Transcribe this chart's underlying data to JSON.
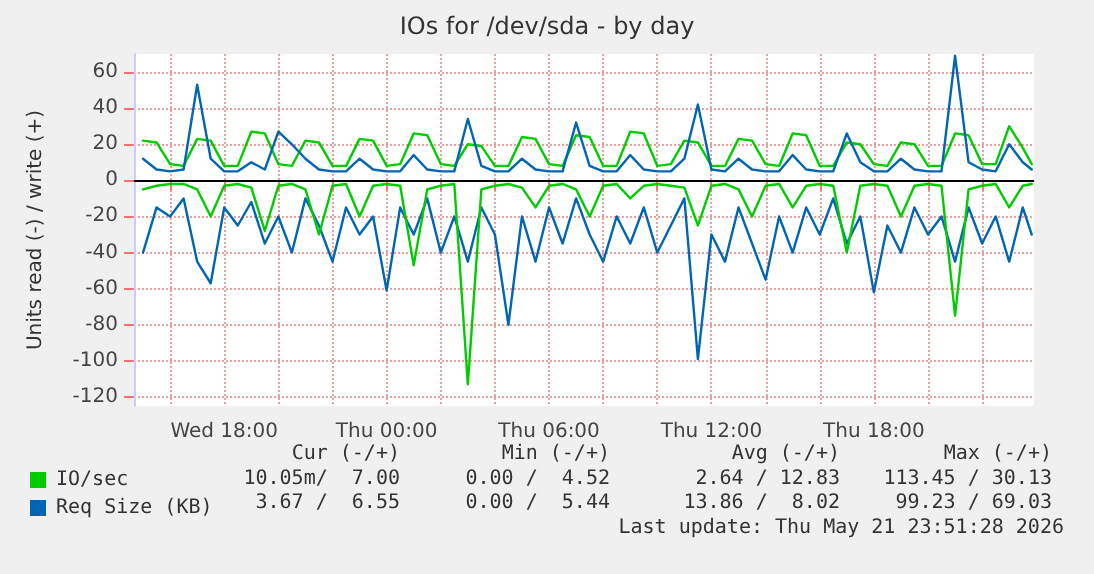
{
  "chart_data": {
    "type": "line",
    "title": "IOs for /dev/sda - by day",
    "ylabel": "Units read (-) / write (+)",
    "x": [
      "2026-05-20T15:00",
      "2026-05-20T15:30",
      "2026-05-20T16:00",
      "2026-05-20T16:30",
      "2026-05-20T17:00",
      "2026-05-20T17:30",
      "2026-05-20T18:00",
      "2026-05-20T18:30",
      "2026-05-20T19:00",
      "2026-05-20T19:30",
      "2026-05-20T20:00",
      "2026-05-20T20:30",
      "2026-05-20T21:00",
      "2026-05-20T21:30",
      "2026-05-20T22:00",
      "2026-05-20T22:30",
      "2026-05-20T23:00",
      "2026-05-20T23:30",
      "2026-05-21T00:00",
      "2026-05-21T00:30",
      "2026-05-21T01:00",
      "2026-05-21T01:30",
      "2026-05-21T02:00",
      "2026-05-21T02:30",
      "2026-05-21T03:00",
      "2026-05-21T03:30",
      "2026-05-21T04:00",
      "2026-05-21T04:30",
      "2026-05-21T05:00",
      "2026-05-21T05:30",
      "2026-05-21T06:00",
      "2026-05-21T06:30",
      "2026-05-21T07:00",
      "2026-05-21T07:30",
      "2026-05-21T08:00",
      "2026-05-21T08:30",
      "2026-05-21T09:00",
      "2026-05-21T09:30",
      "2026-05-21T10:00",
      "2026-05-21T10:30",
      "2026-05-21T11:00",
      "2026-05-21T11:30",
      "2026-05-21T12:00",
      "2026-05-21T12:30",
      "2026-05-21T13:00",
      "2026-05-21T13:30",
      "2026-05-21T14:00",
      "2026-05-21T14:30",
      "2026-05-21T15:00",
      "2026-05-21T15:30",
      "2026-05-21T16:00",
      "2026-05-21T16:30",
      "2026-05-21T17:00",
      "2026-05-21T17:30",
      "2026-05-21T18:00",
      "2026-05-21T18:30",
      "2026-05-21T19:00",
      "2026-05-21T19:30",
      "2026-05-21T20:00",
      "2026-05-21T20:30",
      "2026-05-21T21:00",
      "2026-05-21T21:30",
      "2026-05-21T22:00",
      "2026-05-21T22:30",
      "2026-05-21T23:00",
      "2026-05-21T23:30",
      "2026-05-21T23:50"
    ],
    "series": [
      {
        "name": "IO/sec",
        "color": "#00cc00",
        "values": [
          22,
          21,
          9,
          8,
          23,
          22,
          8,
          8,
          27,
          26,
          9,
          8,
          22,
          21,
          8,
          8,
          23,
          22,
          8,
          9,
          26,
          25,
          9,
          8,
          20,
          19,
          8,
          8,
          24,
          23,
          9,
          8,
          25,
          24,
          8,
          8,
          27,
          26,
          8,
          9,
          22,
          21,
          8,
          8,
          23,
          22,
          9,
          8,
          26,
          25,
          8,
          8,
          21,
          20,
          9,
          8,
          21,
          20,
          8,
          8,
          26,
          25,
          9,
          9,
          30,
          18,
          9
        ]
      },
      {
        "name": "Req Size (KB)",
        "color": "#0066b3",
        "values": [
          12,
          6,
          5,
          6,
          53,
          12,
          5,
          5,
          10,
          6,
          27,
          20,
          12,
          6,
          5,
          5,
          12,
          6,
          5,
          5,
          14,
          6,
          5,
          5,
          34,
          8,
          5,
          5,
          12,
          6,
          5,
          5,
          32,
          8,
          5,
          5,
          14,
          6,
          5,
          5,
          12,
          42,
          6,
          5,
          12,
          6,
          5,
          5,
          14,
          6,
          5,
          5,
          26,
          10,
          5,
          5,
          12,
          6,
          5,
          5,
          69,
          10,
          6,
          5,
          20,
          10,
          6
        ]
      },
      {
        "color": "#0066b3",
        "values": [
          -40,
          -15,
          -20,
          -10,
          -45,
          -57,
          -15,
          -25,
          -12,
          -35,
          -20,
          -40,
          -10,
          -25,
          -45,
          -15,
          -30,
          -20,
          -61,
          -15,
          -30,
          -10,
          -40,
          -20,
          -45,
          -15,
          -30,
          -80,
          -20,
          -45,
          -15,
          -35,
          -10,
          -30,
          -45,
          -20,
          -35,
          -15,
          -40,
          -25,
          -10,
          -99,
          -30,
          -45,
          -15,
          -35,
          -55,
          -20,
          -40,
          -15,
          -30,
          -10,
          -35,
          -20,
          -62,
          -25,
          -40,
          -15,
          -30,
          -20,
          -45,
          -15,
          -35,
          -20,
          -45,
          -15,
          -30
        ]
      },
      {
        "color": "#00cc00",
        "values": [
          -5,
          -3,
          -2,
          -2,
          -5,
          -20,
          -3,
          -2,
          -4,
          -28,
          -3,
          -2,
          -5,
          -30,
          -3,
          -2,
          -20,
          -3,
          -2,
          -3,
          -47,
          -5,
          -3,
          -2,
          -113,
          -5,
          -3,
          -2,
          -4,
          -15,
          -3,
          -2,
          -5,
          -20,
          -3,
          -2,
          -10,
          -3,
          -2,
          -3,
          -4,
          -25,
          -3,
          -2,
          -5,
          -20,
          -3,
          -2,
          -15,
          -3,
          -2,
          -3,
          -40,
          -3,
          -2,
          -3,
          -20,
          -3,
          -2,
          -3,
          -75,
          -5,
          -3,
          -2,
          -15,
          -3,
          -2
        ]
      }
    ],
    "xlim": [
      "2026-05-20T14:40",
      "2026-05-21T23:55"
    ],
    "xticks": [
      {
        "value": "2026-05-20T16:00",
        "label": null
      },
      {
        "value": "2026-05-20T18:00",
        "label": "Wed 18:00"
      },
      {
        "value": "2026-05-20T20:00",
        "label": null
      },
      {
        "value": "2026-05-20T22:00",
        "label": null
      },
      {
        "value": "2026-05-21T00:00",
        "label": "Thu 00:00"
      },
      {
        "value": "2026-05-21T02:00",
        "label": null
      },
      {
        "value": "2026-05-21T04:00",
        "label": null
      },
      {
        "value": "2026-05-21T06:00",
        "label": "Thu 06:00"
      },
      {
        "value": "2026-05-21T08:00",
        "label": null
      },
      {
        "value": "2026-05-21T10:00",
        "label": null
      },
      {
        "value": "2026-05-21T12:00",
        "label": "Thu 12:00"
      },
      {
        "value": "2026-05-21T14:00",
        "label": null
      },
      {
        "value": "2026-05-21T16:00",
        "label": null
      },
      {
        "value": "2026-05-21T18:00",
        "label": "Thu 18:00"
      },
      {
        "value": "2026-05-21T20:00",
        "label": null
      },
      {
        "value": "2026-05-21T22:00",
        "label": null
      }
    ],
    "ylim": [
      -125,
      70
    ],
    "yticks": [
      -120,
      -100,
      -80,
      -60,
      -40,
      -20,
      0,
      20,
      40,
      60
    ],
    "ref_lines": [
      {
        "axis": "y",
        "value": 0,
        "color": "#000000"
      }
    ],
    "grid": true,
    "legend": "bottom left",
    "marker": "none",
    "line_style": "solid",
    "annotations": [
      "Cur (-/+)",
      "Min (-/+)",
      "Avg (-/+)",
      "Max (-/+)",
      "10.05m/  7.00",
      "0.00 /  4.52",
      "2.64 / 12.83",
      "113.45 / 30.13",
      "3.67 /  6.55",
      "0.00 /  5.44",
      "13.86 /  8.02",
      "99.23 / 69.03",
      "Last update: Thu May 21 23:51:28 2026"
    ]
  }
}
